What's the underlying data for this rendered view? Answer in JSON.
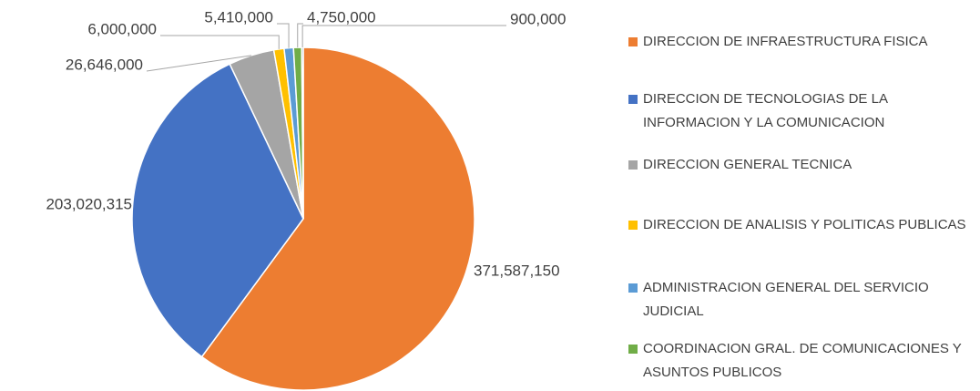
{
  "chart_data": {
    "type": "pie",
    "categories": [
      "DIRECCION DE INFRAESTRUCTURA FISICA",
      "DIRECCION DE TECNOLOGIAS DE LA INFORMACION Y LA COMUNICACION",
      "DIRECCION GENERAL TECNICA",
      "DIRECCION DE ANALISIS Y POLITICAS PUBLICAS",
      "ADMINISTRACION GENERAL DEL SERVICIO JUDICIAL",
      "COORDINACION GRAL. DE COMUNICACIONES Y ASUNTOS PUBLICOS",
      null
    ],
    "values": [
      371587150,
      203020315,
      26646000,
      6000000,
      5410000,
      4750000,
      900000
    ],
    "value_labels": [
      "371,587,150",
      "203,020,315",
      "26,646,000",
      "6,000,000",
      "5,410,000",
      "4,750,000",
      "900,000"
    ],
    "colors": [
      "#ed7d31",
      "#4472c4",
      "#a5a5a5",
      "#ffc000",
      "#5b9bd5",
      "#70ad47",
      "#264478"
    ],
    "legend": "right"
  }
}
